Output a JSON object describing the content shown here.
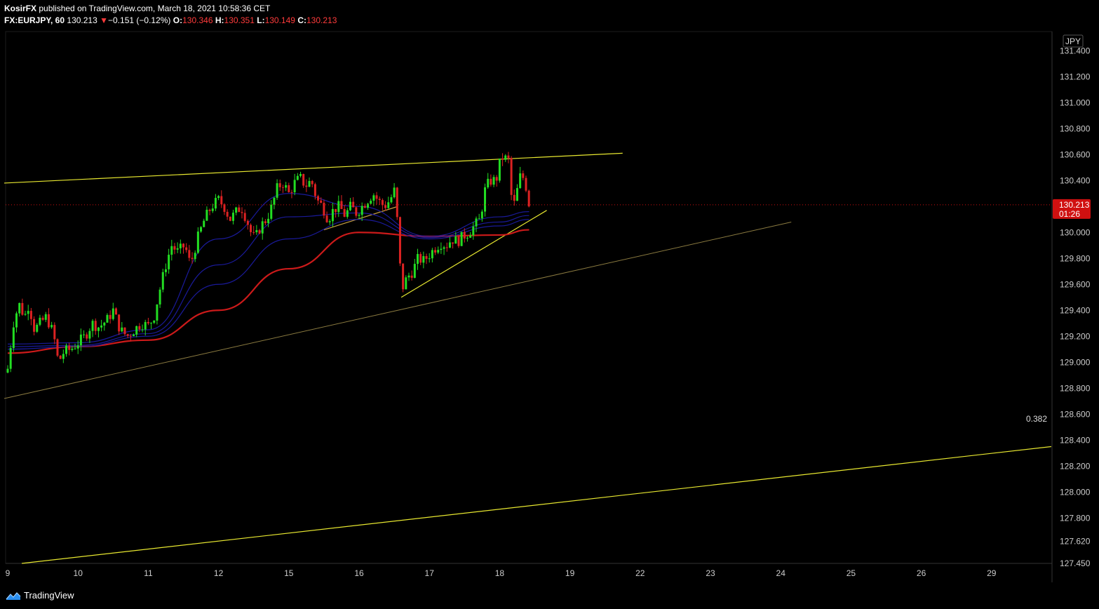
{
  "header": {
    "author": "KosirFX",
    "published_text": "published on TradingView.com, March 18, 2021 10:58:36 CET",
    "symbol": "FX:EURJPY, 60",
    "last": "130.213",
    "change_arrow": "▼",
    "change": "−0.151 (−0.12%)",
    "o_label": "O:",
    "o_value": "130.346",
    "h_label": "H:",
    "h_value": "130.351",
    "l_label": "L:",
    "l_value": "130.149",
    "c_label": "C:",
    "c_value": "130.213"
  },
  "footer": {
    "brand": "TradingView"
  },
  "colors": {
    "background": "#000000",
    "up_candle": "#22dd22",
    "down_candle": "#dd2222",
    "trendline": "#e8e830",
    "trendline_faint": "#8a7a40",
    "ma_slow": "#cc1a1a",
    "ma_fast": "#1a1a9a",
    "price_label": "#d01010",
    "axis_text": "#cccccc"
  },
  "chart_data": {
    "type": "candlestick",
    "currency_label": "JPY",
    "current_price": "130.213",
    "countdown": "01:26",
    "fib_label": "0.382",
    "ylim": [
      127.45,
      131.55
    ],
    "y_ticks": [
      "131.400",
      "131.200",
      "131.000",
      "130.800",
      "130.600",
      "130.400",
      "130.000",
      "129.800",
      "129.600",
      "129.400",
      "129.200",
      "129.000",
      "128.800",
      "128.600",
      "128.400",
      "128.200",
      "128.000",
      "127.800",
      "127.620",
      "127.450"
    ],
    "x_ticks": [
      "9",
      "10",
      "11",
      "12",
      "15",
      "16",
      "17",
      "18",
      "19",
      "22",
      "23",
      "24",
      "25",
      "26",
      "29"
    ],
    "day_slot_points": [
      [
        0,
        9
      ],
      [
        1,
        10
      ],
      [
        2,
        11
      ],
      [
        3,
        12
      ],
      [
        4,
        15
      ],
      [
        5,
        16
      ],
      [
        6,
        17
      ],
      [
        7,
        18
      ],
      [
        8,
        19
      ],
      [
        9,
        22
      ],
      [
        10,
        23
      ],
      [
        11,
        24
      ],
      [
        12,
        25
      ],
      [
        13,
        26
      ],
      [
        14,
        29
      ]
    ],
    "close_path": [
      [
        0.0,
        128.95
      ],
      [
        0.08,
        129.3
      ],
      [
        0.16,
        129.45
      ],
      [
        0.24,
        129.35
      ],
      [
        0.3,
        129.45
      ],
      [
        0.38,
        129.25
      ],
      [
        0.46,
        129.3
      ],
      [
        0.55,
        129.35
      ],
      [
        0.65,
        129.22
      ],
      [
        0.72,
        129.0
      ],
      [
        0.8,
        129.08
      ],
      [
        0.9,
        129.1
      ],
      [
        1.0,
        129.15
      ],
      [
        1.1,
        129.2
      ],
      [
        1.2,
        129.3
      ],
      [
        1.3,
        129.27
      ],
      [
        1.42,
        129.33
      ],
      [
        1.5,
        129.4
      ],
      [
        1.6,
        129.25
      ],
      [
        1.7,
        129.2
      ],
      [
        1.8,
        129.25
      ],
      [
        1.9,
        129.3
      ],
      [
        2.0,
        129.28
      ],
      [
        2.08,
        129.35
      ],
      [
        2.16,
        129.55
      ],
      [
        2.25,
        129.75
      ],
      [
        2.33,
        129.9
      ],
      [
        2.42,
        129.85
      ],
      [
        2.52,
        129.9
      ],
      [
        2.6,
        129.75
      ],
      [
        2.7,
        129.95
      ],
      [
        2.8,
        130.1
      ],
      [
        2.9,
        130.2
      ],
      [
        3.0,
        130.25
      ],
      [
        3.08,
        130.2
      ],
      [
        3.16,
        130.1
      ],
      [
        3.24,
        130.15
      ],
      [
        3.32,
        130.2
      ],
      [
        3.4,
        130.1
      ],
      [
        3.46,
        130.0
      ],
      [
        3.52,
        129.95
      ],
      [
        3.6,
        130.05
      ],
      [
        3.68,
        130.1
      ],
      [
        3.76,
        130.2
      ],
      [
        3.84,
        130.35
      ],
      [
        3.92,
        130.38
      ],
      [
        4.0,
        130.3
      ],
      [
        4.08,
        130.38
      ],
      [
        4.16,
        130.42
      ],
      [
        4.24,
        130.36
      ],
      [
        4.32,
        130.4
      ],
      [
        4.4,
        130.25
      ],
      [
        4.48,
        130.2
      ],
      [
        4.56,
        130.1
      ],
      [
        4.64,
        130.18
      ],
      [
        4.72,
        130.2
      ],
      [
        4.8,
        130.13
      ],
      [
        4.88,
        130.2
      ],
      [
        4.96,
        130.15
      ],
      [
        5.04,
        130.2
      ],
      [
        5.12,
        130.25
      ],
      [
        5.2,
        130.3
      ],
      [
        5.28,
        130.24
      ],
      [
        5.36,
        130.2
      ],
      [
        5.44,
        130.25
      ],
      [
        5.5,
        130.32
      ],
      [
        5.56,
        130.0
      ],
      [
        5.6,
        129.55
      ],
      [
        5.68,
        129.65
      ],
      [
        5.76,
        129.7
      ],
      [
        5.84,
        129.8
      ],
      [
        5.92,
        129.78
      ],
      [
        6.0,
        129.83
      ],
      [
        6.08,
        129.88
      ],
      [
        6.16,
        129.92
      ],
      [
        6.24,
        129.9
      ],
      [
        6.32,
        129.95
      ],
      [
        6.4,
        129.93
      ],
      [
        6.48,
        129.97
      ],
      [
        6.56,
        130.0
      ],
      [
        6.64,
        130.05
      ],
      [
        6.72,
        130.1
      ],
      [
        6.8,
        130.35
      ],
      [
        6.88,
        130.4
      ],
      [
        6.95,
        130.4
      ],
      [
        7.02,
        130.58
      ],
      [
        7.08,
        130.57
      ],
      [
        7.14,
        130.55
      ],
      [
        7.18,
        130.15
      ],
      [
        7.24,
        130.3
      ],
      [
        7.3,
        130.45
      ],
      [
        7.36,
        130.4
      ],
      [
        7.42,
        130.213
      ]
    ],
    "series": [
      {
        "name": "",
        "color": "#cc1a1a",
        "points": [
          [
            0,
            129.07
          ],
          [
            1,
            129.12
          ],
          [
            2,
            129.17
          ],
          [
            3,
            129.4
          ],
          [
            4,
            129.72
          ],
          [
            5,
            130.0
          ],
          [
            6,
            129.97
          ],
          [
            7,
            129.98
          ],
          [
            7.42,
            130.02
          ]
        ]
      },
      {
        "name": "",
        "color": "#1a1a9a",
        "points": [
          [
            0,
            129.1
          ],
          [
            1,
            129.12
          ],
          [
            2,
            129.2
          ],
          [
            3,
            129.6
          ],
          [
            4,
            129.95
          ],
          [
            5,
            130.1
          ],
          [
            6,
            129.95
          ],
          [
            7,
            130.05
          ],
          [
            7.42,
            130.1
          ]
        ]
      },
      {
        "name": "",
        "color": "#1a1a9a",
        "points": [
          [
            0,
            129.12
          ],
          [
            1,
            129.13
          ],
          [
            2,
            129.22
          ],
          [
            3,
            129.75
          ],
          [
            4,
            130.12
          ],
          [
            5,
            130.15
          ],
          [
            6,
            129.96
          ],
          [
            7,
            130.08
          ],
          [
            7.42,
            130.13
          ]
        ]
      },
      {
        "name": "",
        "color": "#1a1a9a",
        "points": [
          [
            0,
            129.14
          ],
          [
            1,
            129.15
          ],
          [
            2,
            129.25
          ],
          [
            3,
            129.95
          ],
          [
            4,
            130.3
          ],
          [
            5,
            130.2
          ],
          [
            6,
            129.97
          ],
          [
            7,
            130.12
          ],
          [
            7.42,
            130.16
          ]
        ]
      }
    ],
    "trendlines": [
      {
        "color": "#e8e830",
        "width": 1.2,
        "from": [
          -0.05,
          130.38
        ],
        "to": [
          8.75,
          130.61
        ]
      },
      {
        "color": "#e8e830",
        "width": 1.2,
        "from": [
          5.6,
          129.5
        ],
        "to": [
          7.67,
          130.17
        ]
      },
      {
        "color": "#c8a040",
        "width": 1.2,
        "from": [
          4.5,
          130.02
        ],
        "to": [
          5.55,
          130.2
        ]
      },
      {
        "color": "#8a7a40",
        "width": 1.0,
        "from": [
          -0.05,
          128.72
        ],
        "to": [
          11.15,
          130.08
        ]
      },
      {
        "color": "#e8e830",
        "width": 1.2,
        "from": [
          0.2,
          127.45
        ],
        "to": [
          14.85,
          128.35
        ]
      }
    ]
  }
}
